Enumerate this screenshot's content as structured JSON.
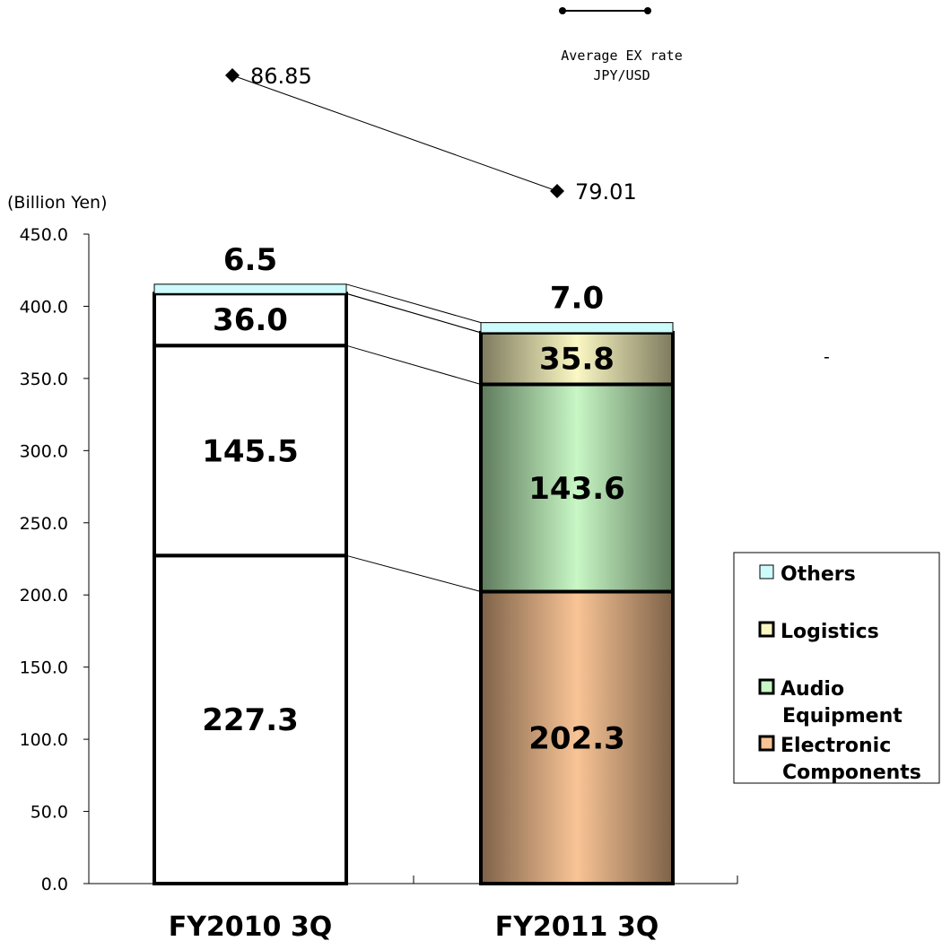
{
  "chart_data": {
    "type": "bar",
    "stacked": true,
    "unit_label": "(Billion Yen)",
    "categories": [
      "FY2010 3Q",
      "FY2011 3Q"
    ],
    "ylim": [
      0,
      450
    ],
    "yticks": [
      "0.0",
      "50.0",
      "100.0",
      "150.0",
      "200.0",
      "250.0",
      "300.0",
      "350.0",
      "400.0",
      "450.0"
    ],
    "series": [
      {
        "name": "Electronic Components",
        "legend_lines": [
          "Electronic",
          "Components"
        ],
        "values": [
          227.3,
          202.3
        ],
        "labels": [
          "227.3",
          "202.3"
        ],
        "color": "#f9c496",
        "edge_color": "#7d6248"
      },
      {
        "name": "Audio Equipment",
        "legend_lines": [
          "Audio",
          "Equipment"
        ],
        "values": [
          145.5,
          143.6
        ],
        "labels": [
          "145.5",
          "143.6"
        ],
        "color": "#c8f7c5",
        "edge_color": "#5e7a5c"
      },
      {
        "name": "Logistics",
        "legend_lines": [
          "Logistics"
        ],
        "values": [
          36.0,
          35.8
        ],
        "labels": [
          "36.0",
          "35.8"
        ],
        "color": "#fbf8c4",
        "edge_color": "#7d7a5e"
      },
      {
        "name": "Others",
        "legend_lines": [
          "Others"
        ],
        "values": [
          6.5,
          7.0
        ],
        "labels": [
          "6.5",
          "7.0"
        ],
        "color": "#cdfafa",
        "edge_color": "#cdfafa"
      }
    ],
    "exchange_rate": {
      "name_lines": [
        "Average EX rate",
        "JPY/USD"
      ],
      "values": [
        86.85,
        79.01
      ],
      "labels": [
        "86.85",
        "79.01"
      ]
    },
    "stray_mark": "-"
  }
}
